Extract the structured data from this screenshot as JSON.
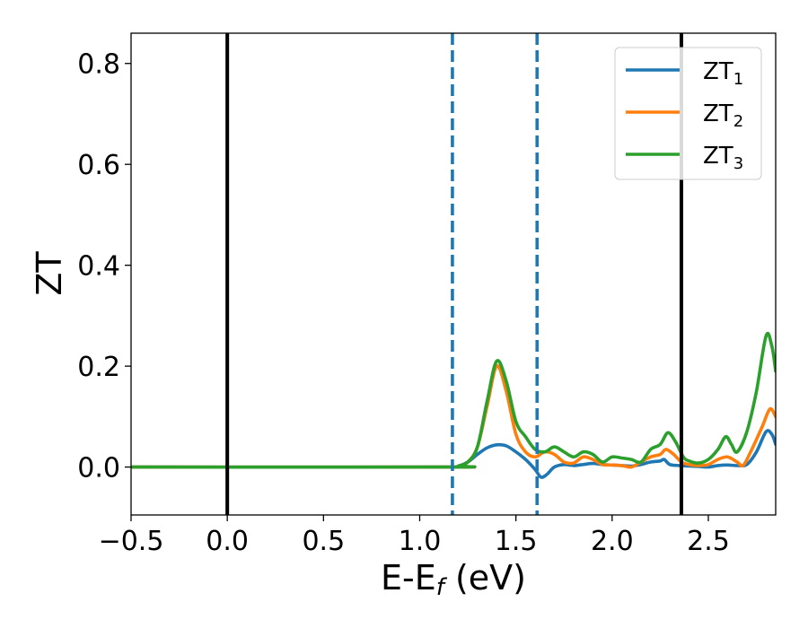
{
  "chart_data": {
    "type": "line",
    "title": "",
    "xlabel": {
      "main": "E-E",
      "sub": "f",
      "unit": " (eV)"
    },
    "ylabel": "ZT",
    "xlim": [
      -0.5,
      2.85
    ],
    "ylim": [
      -0.095,
      0.86
    ],
    "xticks": [
      {
        "value": -0.5,
        "label": "−0.5"
      },
      {
        "value": 0.0,
        "label": "0.0"
      },
      {
        "value": 0.5,
        "label": "0.5"
      },
      {
        "value": 1.0,
        "label": "1.0"
      },
      {
        "value": 1.5,
        "label": "1.5"
      },
      {
        "value": 2.0,
        "label": "2.0"
      },
      {
        "value": 2.5,
        "label": "2.5"
      }
    ],
    "yticks": [
      {
        "value": 0.0,
        "label": "0.0"
      },
      {
        "value": 0.2,
        "label": "0.2"
      },
      {
        "value": 0.4,
        "label": "0.4"
      },
      {
        "value": 0.6,
        "label": "0.6"
      },
      {
        "value": 0.8,
        "label": "0.8"
      }
    ],
    "grid": false,
    "legend": "top-right",
    "vlines": [
      {
        "x": 0.0,
        "style": "solid",
        "color": "#000000"
      },
      {
        "x": 1.17,
        "style": "dashed",
        "color": "#1f77b4"
      },
      {
        "x": 1.61,
        "style": "dashed",
        "color": "#1f77b4"
      },
      {
        "x": 2.36,
        "style": "solid",
        "color": "#000000"
      }
    ],
    "series": [
      {
        "name": "ZT",
        "sub": "1",
        "color": "#1f77b4",
        "points": [
          [
            -0.5,
            0
          ],
          [
            1.15,
            0
          ],
          [
            1.2,
            0.002
          ],
          [
            1.25,
            0.01
          ],
          [
            1.3,
            0.025
          ],
          [
            1.35,
            0.038
          ],
          [
            1.4,
            0.044
          ],
          [
            1.45,
            0.042
          ],
          [
            1.5,
            0.03
          ],
          [
            1.55,
            0.015
          ],
          [
            1.6,
            -0.005
          ],
          [
            1.63,
            -0.02
          ],
          [
            1.66,
            -0.015
          ],
          [
            1.7,
            0.0
          ],
          [
            1.75,
            0.005
          ],
          [
            1.8,
            0.003
          ],
          [
            1.85,
            0.005
          ],
          [
            1.9,
            0.007
          ],
          [
            1.95,
            0.005
          ],
          [
            2.0,
            0.004
          ],
          [
            2.05,
            0.003
          ],
          [
            2.1,
            0.002
          ],
          [
            2.15,
            0.005
          ],
          [
            2.2,
            0.01
          ],
          [
            2.25,
            0.012
          ],
          [
            2.27,
            0.015
          ],
          [
            2.3,
            0.005
          ],
          [
            2.35,
            0.003
          ],
          [
            2.4,
            0.002
          ],
          [
            2.45,
            0.001
          ],
          [
            2.5,
            0.0
          ],
          [
            2.55,
            0.003
          ],
          [
            2.6,
            0.004
          ],
          [
            2.65,
            0.003
          ],
          [
            2.7,
            0.005
          ],
          [
            2.75,
            0.03
          ],
          [
            2.8,
            0.07
          ],
          [
            2.83,
            0.065
          ],
          [
            2.85,
            0.045
          ]
        ]
      },
      {
        "name": "ZT",
        "sub": "2",
        "color": "#ff7f0e",
        "points": [
          [
            -0.5,
            0
          ],
          [
            1.15,
            0
          ],
          [
            1.2,
            0.002
          ],
          [
            1.25,
            0.01
          ],
          [
            1.3,
            0.04
          ],
          [
            1.35,
            0.12
          ],
          [
            1.4,
            0.2
          ],
          [
            1.45,
            0.15
          ],
          [
            1.5,
            0.065
          ],
          [
            1.55,
            0.03
          ],
          [
            1.6,
            0.02
          ],
          [
            1.65,
            0.03
          ],
          [
            1.7,
            0.025
          ],
          [
            1.75,
            0.01
          ],
          [
            1.8,
            0.008
          ],
          [
            1.85,
            0.02
          ],
          [
            1.9,
            0.015
          ],
          [
            1.95,
            0.005
          ],
          [
            2.0,
            0.004
          ],
          [
            2.05,
            0.003
          ],
          [
            2.1,
            0.0
          ],
          [
            2.15,
            0.01
          ],
          [
            2.2,
            0.02
          ],
          [
            2.25,
            0.025
          ],
          [
            2.28,
            0.035
          ],
          [
            2.32,
            0.025
          ],
          [
            2.36,
            0.01
          ],
          [
            2.4,
            0.005
          ],
          [
            2.45,
            0.003
          ],
          [
            2.5,
            0.005
          ],
          [
            2.55,
            0.015
          ],
          [
            2.6,
            0.02
          ],
          [
            2.65,
            0.01
          ],
          [
            2.68,
            0.003
          ],
          [
            2.72,
            0.03
          ],
          [
            2.78,
            0.08
          ],
          [
            2.82,
            0.115
          ],
          [
            2.85,
            0.1
          ]
        ]
      },
      {
        "name": "ZT",
        "sub": "3",
        "color": "#2ca02c",
        "points": [
          [
            -0.5,
            0
          ],
          [
            1.15,
            0
          ],
          [
            1.2,
            0.002
          ],
          [
            1.25,
            0.01
          ],
          [
            1.3,
            0.04
          ],
          [
            1.35,
            0.13
          ],
          [
            1.4,
            0.21
          ],
          [
            1.45,
            0.17
          ],
          [
            1.5,
            0.09
          ],
          [
            1.55,
            0.06
          ],
          [
            1.6,
            0.035
          ],
          [
            1.65,
            0.03
          ],
          [
            1.7,
            0.04
          ],
          [
            1.75,
            0.03
          ],
          [
            1.8,
            0.02
          ],
          [
            1.85,
            0.03
          ],
          [
            1.9,
            0.025
          ],
          [
            1.95,
            0.01
          ],
          [
            2.0,
            0.02
          ],
          [
            2.05,
            0.018
          ],
          [
            2.1,
            0.015
          ],
          [
            2.15,
            0.01
          ],
          [
            2.2,
            0.035
          ],
          [
            2.25,
            0.045
          ],
          [
            2.29,
            0.068
          ],
          [
            2.33,
            0.05
          ],
          [
            2.37,
            0.02
          ],
          [
            2.4,
            0.012
          ],
          [
            2.45,
            0.008
          ],
          [
            2.5,
            0.015
          ],
          [
            2.55,
            0.035
          ],
          [
            2.59,
            0.06
          ],
          [
            2.62,
            0.045
          ],
          [
            2.65,
            0.03
          ],
          [
            2.7,
            0.07
          ],
          [
            2.75,
            0.15
          ],
          [
            2.8,
            0.26
          ],
          [
            2.83,
            0.24
          ],
          [
            2.85,
            0.19
          ]
        ]
      }
    ]
  }
}
